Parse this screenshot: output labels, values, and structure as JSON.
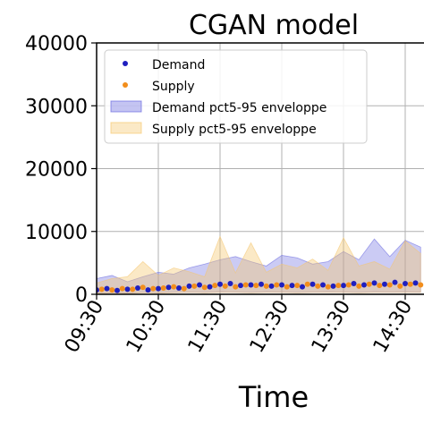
{
  "chart_data": {
    "type": "scatter",
    "title": "CGAN model",
    "xlabel": "Time",
    "ylabel": "",
    "ylim": [
      0,
      40000
    ],
    "yticks": [
      0,
      10000,
      20000,
      30000,
      40000
    ],
    "ytick_labels": [
      "0",
      "10000",
      "20000",
      "30000",
      "40000"
    ],
    "xticks": [
      "09:30",
      "10:30",
      "11:30",
      "12:30",
      "13:30",
      "14:30"
    ],
    "grid": true,
    "legend_position": "top-left",
    "series": [
      {
        "name": "Demand",
        "kind": "points",
        "color": "#1f1fbf",
        "x": [
          "09:30",
          "09:40",
          "09:50",
          "10:00",
          "10:10",
          "10:20",
          "10:30",
          "10:40",
          "10:50",
          "11:00",
          "11:10",
          "11:20",
          "11:30",
          "11:40",
          "11:50",
          "12:00",
          "12:10",
          "12:20",
          "12:30",
          "12:40",
          "12:50",
          "13:00",
          "13:10",
          "13:20",
          "13:30",
          "13:40",
          "13:50",
          "14:00",
          "14:10",
          "14:20",
          "14:30",
          "14:40"
        ],
        "y": [
          700,
          900,
          600,
          800,
          1000,
          700,
          900,
          1100,
          1000,
          1300,
          1500,
          1200,
          1600,
          1700,
          1400,
          1500,
          1600,
          1300,
          1500,
          1400,
          1200,
          1600,
          1500,
          1300,
          1400,
          1700,
          1500,
          1800,
          1600,
          1900,
          1700,
          1800
        ]
      },
      {
        "name": "Supply",
        "kind": "points",
        "color": "#f28e1c",
        "x": [
          "09:35",
          "09:45",
          "09:55",
          "10:05",
          "10:15",
          "10:25",
          "10:35",
          "10:45",
          "10:55",
          "11:05",
          "11:15",
          "11:25",
          "11:35",
          "11:45",
          "11:55",
          "12:05",
          "12:15",
          "12:25",
          "12:35",
          "12:45",
          "12:55",
          "13:05",
          "13:15",
          "13:25",
          "13:35",
          "13:45",
          "13:55",
          "14:05",
          "14:15",
          "14:25",
          "14:35",
          "14:45"
        ],
        "y": [
          800,
          700,
          900,
          800,
          1100,
          900,
          1000,
          1200,
          900,
          1300,
          1100,
          1400,
          1300,
          1200,
          1500,
          1400,
          1300,
          1500,
          1200,
          1400,
          1600,
          1300,
          1200,
          1400,
          1500,
          1300,
          1600,
          1400,
          1500,
          1300,
          1600,
          1500
        ]
      },
      {
        "name": "Demand pct5-95 enveloppe",
        "kind": "band",
        "color": "#6b6bdf",
        "x": [
          "09:30",
          "09:45",
          "10:00",
          "10:15",
          "10:30",
          "10:45",
          "11:00",
          "11:15",
          "11:30",
          "11:45",
          "12:00",
          "12:15",
          "12:30",
          "12:45",
          "13:00",
          "13:15",
          "13:30",
          "13:45",
          "14:00",
          "14:15",
          "14:30",
          "14:45"
        ],
        "lower": [
          200,
          250,
          200,
          300,
          250,
          300,
          350,
          300,
          400,
          350,
          300,
          400,
          350,
          300,
          350,
          400,
          350,
          300,
          400,
          350,
          400,
          350
        ],
        "upper": [
          2500,
          3000,
          2000,
          2800,
          3500,
          3200,
          4200,
          4800,
          5500,
          6000,
          5200,
          4500,
          6200,
          5800,
          4800,
          5200,
          6800,
          5500,
          8800,
          6000,
          8600,
          7500
        ]
      },
      {
        "name": "Supply pct5-95 enveloppe",
        "kind": "band",
        "color": "#f5c770",
        "x": [
          "09:30",
          "09:45",
          "10:00",
          "10:15",
          "10:30",
          "10:45",
          "11:00",
          "11:15",
          "11:30",
          "11:45",
          "12:00",
          "12:15",
          "12:30",
          "12:45",
          "13:00",
          "13:15",
          "13:30",
          "13:45",
          "14:00",
          "14:15",
          "14:30",
          "14:45"
        ],
        "lower": [
          150,
          200,
          150,
          250,
          200,
          250,
          300,
          250,
          300,
          300,
          250,
          300,
          300,
          250,
          300,
          300,
          300,
          250,
          300,
          300,
          300,
          300
        ],
        "upper": [
          1800,
          2500,
          2800,
          5200,
          3000,
          4200,
          3600,
          2800,
          9200,
          3400,
          8200,
          3500,
          4800,
          4200,
          5600,
          3800,
          9000,
          4500,
          5200,
          4000,
          8500,
          6500
        ]
      }
    ]
  }
}
